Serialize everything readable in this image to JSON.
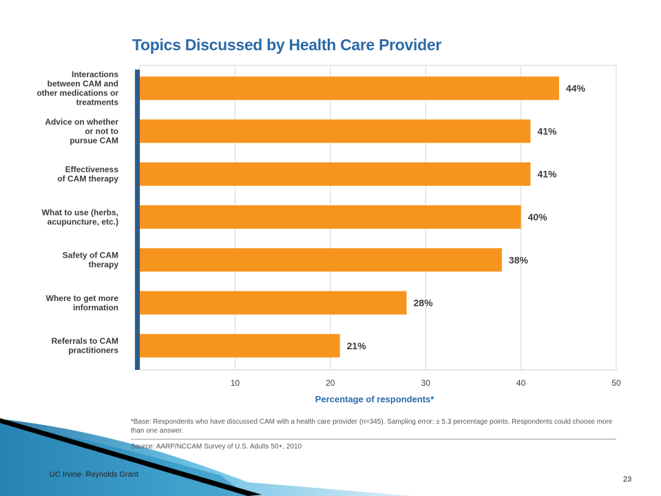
{
  "slide": {
    "footer_left": "UC Irvine- Reynolds Grant",
    "page_number": "23"
  },
  "chart_data": {
    "type": "bar",
    "orientation": "horizontal",
    "title": "Topics Discussed by Health Care Provider",
    "xlabel": "Percentage of respondents*",
    "ylabel": "",
    "xlim": [
      0,
      50
    ],
    "xticks": [
      10,
      20,
      30,
      40,
      50
    ],
    "grid": true,
    "categories": [
      [
        "Interactions",
        "between CAM and",
        "other medications or",
        "treatments"
      ],
      [
        "Advice on whether",
        "or not to",
        "pursue CAM"
      ],
      [
        "Effectiveness",
        "of CAM therapy"
      ],
      [
        "What to use (herbs,",
        "acupuncture, etc.)"
      ],
      [
        "Safety of CAM",
        "therapy"
      ],
      [
        "Where to get more",
        "information"
      ],
      [
        "Referrals to CAM",
        "practitioners"
      ]
    ],
    "values": [
      44,
      41,
      41,
      40,
      38,
      28,
      21
    ],
    "data_labels": [
      "44%",
      "41%",
      "41%",
      "40%",
      "38%",
      "28%",
      "21%"
    ],
    "bar_color": "#f7941d",
    "axis_color": "#2b5c8a",
    "footnote": "*Base: Respondents who have discussed CAM with a health care provider (n=345). Sampling error: ± 5.3 percentage points. Respondents could choose more than one answer.",
    "source": "Source: AARP/NCCAM Survey of U.S. Adults 50+, 2010"
  }
}
